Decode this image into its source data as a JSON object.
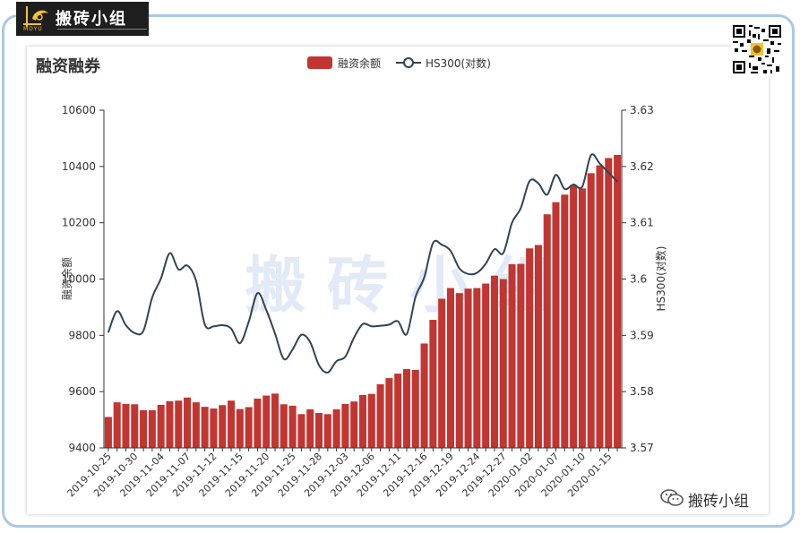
{
  "brand": {
    "name": "搬砖小组",
    "sub": "MOYU"
  },
  "footer": {
    "label": "搬砖小组"
  },
  "watermark": "搬 砖 小 组",
  "colors": {
    "bar": "#c23531",
    "line": "#2f4554",
    "axis": "#333333",
    "frame": "#a9c8e8"
  },
  "chart_data": {
    "type": "bar",
    "title": "融资融券",
    "legend": [
      "融资余额",
      "HS300(对数)"
    ],
    "legend_position": "top-center",
    "ylabel": "融资余额",
    "y2label": "HS300(对数)",
    "ylim": [
      9400,
      10600
    ],
    "y_ticks": [
      "10600",
      "10400",
      "10200",
      "10000",
      "9800",
      "9600",
      "9400"
    ],
    "y2lim": [
      3.57,
      3.63
    ],
    "y2_ticks": [
      "3.63",
      "3.62",
      "3.61",
      "3.6",
      "3.59",
      "3.58",
      "3.57"
    ],
    "grid": false,
    "x_tick_labels": [
      "2019-10-25",
      "2019-10-30",
      "2019-11-04",
      "2019-11-07",
      "2019-11-12",
      "2019-11-15",
      "2019-11-20",
      "2019-11-25",
      "2019-11-28",
      "2019-12-03",
      "2019-12-06",
      "2019-12-11",
      "2019-12-16",
      "2019-12-19",
      "2019-12-24",
      "2019-12-27",
      "2020-01-02",
      "2020-01-07",
      "2020-01-10",
      "2020-01-15"
    ],
    "series": [
      {
        "name": "融资余额",
        "type": "bar",
        "values": [
          9510,
          9562,
          9556,
          9555,
          9534,
          9534,
          9553,
          9566,
          9568,
          9579,
          9562,
          9546,
          9540,
          9552,
          9568,
          9538,
          9545,
          9575,
          9586,
          9593,
          9555,
          9550,
          9520,
          9537,
          9524,
          9520,
          9537,
          9556,
          9565,
          9588,
          9592,
          9626,
          9648,
          9664,
          9680,
          9677,
          9771,
          9855,
          9930,
          9968,
          9950,
          9966,
          9968,
          9984,
          10012,
          10000,
          10053,
          10054,
          10109,
          10121,
          10230,
          10273,
          10300,
          10334,
          10322,
          10376,
          10404,
          10430,
          10441
        ]
      },
      {
        "name": "HS300(对数)",
        "type": "line",
        "values": [
          3.5905,
          3.5943,
          3.5918,
          3.5904,
          3.5908,
          3.5967,
          3.6001,
          3.6046,
          3.6017,
          3.6024,
          3.5997,
          3.5919,
          3.5916,
          3.5918,
          3.5912,
          3.5886,
          3.5924,
          3.5975,
          3.5945,
          3.5903,
          3.5858,
          3.5875,
          3.5901,
          3.5888,
          3.5847,
          3.5834,
          3.5854,
          3.5862,
          3.5896,
          3.592,
          3.5916,
          3.5917,
          3.5919,
          3.5925,
          3.5902,
          3.5968,
          3.6003,
          3.6064,
          3.6061,
          3.605,
          3.6019,
          3.6009,
          3.6011,
          3.6027,
          3.6053,
          3.6046,
          3.61,
          3.6126,
          3.6174,
          3.617,
          3.615,
          3.6185,
          3.616,
          3.6168,
          3.6164,
          3.622,
          3.6205,
          3.6189,
          3.6173
        ]
      }
    ]
  }
}
